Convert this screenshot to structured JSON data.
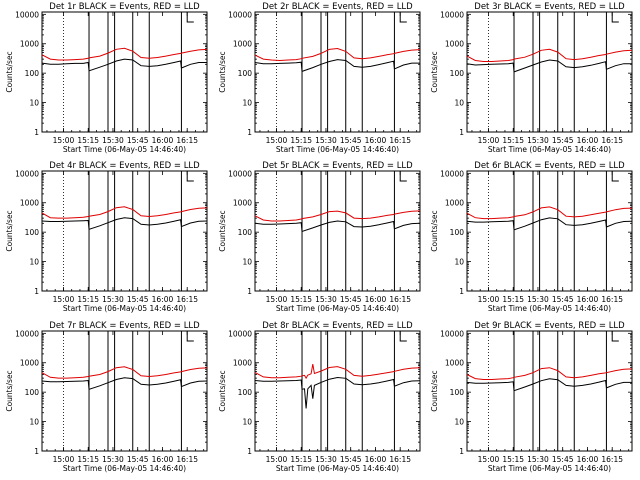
{
  "chart_data": [
    {
      "type": "line",
      "title": "Det 1r BLACK = Events, RED = LLD",
      "xlabel": "Start Time (06-May-05 14:46:40)",
      "ylabel": "Counts/sec",
      "xticks": [
        "15:00",
        "15:15",
        "15:30",
        "15:45",
        "16:00",
        "16:15"
      ],
      "yticks": [
        "1",
        "10",
        "100",
        "1000",
        "10000"
      ],
      "ylim": [
        1,
        12000
      ],
      "log_y": true,
      "x_minutes": [
        0,
        5,
        10,
        15,
        20,
        25,
        28,
        28.5,
        35,
        40,
        45,
        50,
        55,
        60,
        65,
        70,
        75,
        80,
        84,
        84.5,
        90,
        95,
        100
      ],
      "series": [
        {
          "name": "Events",
          "values": [
            220,
            200,
            200,
            210,
            215,
            215,
            230,
            120,
            160,
            200,
            260,
            300,
            280,
            180,
            170,
            180,
            200,
            230,
            260,
            150,
            200,
            230,
            230
          ]
        },
        {
          "name": "LLD",
          "values": [
            420,
            300,
            280,
            280,
            290,
            300,
            320,
            330,
            380,
            480,
            650,
            700,
            560,
            340,
            320,
            340,
            380,
            430,
            470,
            480,
            560,
            620,
            640
          ]
        }
      ]
    },
    {
      "type": "line",
      "title": "Det 2r BLACK = Events, RED = LLD",
      "xlabel": "Start Time (06-May-05 14:46:40)",
      "ylabel": "Counts/sec",
      "xticks": [
        "15:00",
        "15:15",
        "15:30",
        "15:45",
        "16:00",
        "16:15"
      ],
      "yticks": [
        "1",
        "10",
        "100",
        "1000",
        "10000"
      ],
      "ylim": [
        1,
        12000
      ],
      "log_y": true,
      "x_minutes": [
        0,
        5,
        10,
        15,
        20,
        25,
        28,
        28.5,
        35,
        40,
        45,
        50,
        55,
        60,
        65,
        70,
        75,
        80,
        84,
        84.5,
        90,
        95,
        100
      ],
      "series": [
        {
          "name": "Events",
          "values": [
            230,
            210,
            210,
            215,
            220,
            225,
            235,
            115,
            155,
            200,
            250,
            290,
            270,
            170,
            160,
            170,
            195,
            225,
            255,
            140,
            190,
            220,
            220
          ]
        },
        {
          "name": "LLD",
          "values": [
            410,
            300,
            280,
            270,
            280,
            290,
            310,
            320,
            370,
            470,
            640,
            690,
            550,
            330,
            310,
            330,
            370,
            420,
            460,
            470,
            550,
            610,
            630
          ]
        }
      ]
    },
    {
      "type": "line",
      "title": "Det 3r BLACK = Events, RED = LLD",
      "xlabel": "Start Time (06-May-05 14:46:40)",
      "ylabel": "Counts/sec",
      "xticks": [
        "15:00",
        "15:15",
        "15:30",
        "15:45",
        "16:00",
        "16:15"
      ],
      "yticks": [
        "1",
        "10",
        "100",
        "1000",
        "10000"
      ],
      "ylim": [
        1,
        12000
      ],
      "log_y": true,
      "x_minutes": [
        0,
        5,
        10,
        15,
        20,
        25,
        28,
        28.5,
        35,
        40,
        45,
        50,
        55,
        60,
        65,
        70,
        75,
        80,
        84,
        84.5,
        90,
        95,
        100
      ],
      "series": [
        {
          "name": "Events",
          "values": [
            210,
            190,
            195,
            200,
            205,
            210,
            220,
            110,
            150,
            190,
            240,
            280,
            260,
            165,
            155,
            165,
            185,
            215,
            245,
            135,
            180,
            210,
            210
          ]
        },
        {
          "name": "LLD",
          "values": [
            380,
            270,
            250,
            250,
            260,
            270,
            290,
            300,
            350,
            440,
            600,
            650,
            520,
            310,
            290,
            310,
            350,
            400,
            430,
            440,
            520,
            580,
            600
          ]
        }
      ]
    },
    {
      "type": "line",
      "title": "Det 4r BLACK = Events, RED = LLD",
      "xlabel": "Start Time (06-May-05 14:46:40)",
      "ylabel": "Counts/sec",
      "xticks": [
        "15:00",
        "15:15",
        "15:30",
        "15:45",
        "16:00",
        "16:15"
      ],
      "yticks": [
        "1",
        "10",
        "100",
        "1000",
        "10000"
      ],
      "ylim": [
        1,
        12000
      ],
      "log_y": true,
      "x_minutes": [
        0,
        5,
        10,
        15,
        20,
        25,
        28,
        28.5,
        35,
        40,
        45,
        50,
        55,
        60,
        65,
        70,
        75,
        80,
        84,
        84.5,
        90,
        95,
        100
      ],
      "series": [
        {
          "name": "Events",
          "values": [
            240,
            230,
            230,
            235,
            240,
            245,
            250,
            125,
            165,
            210,
            270,
            310,
            290,
            185,
            175,
            185,
            205,
            235,
            265,
            155,
            205,
            235,
            240
          ]
        },
        {
          "name": "LLD",
          "values": [
            450,
            310,
            300,
            300,
            310,
            320,
            340,
            350,
            400,
            500,
            680,
            730,
            590,
            360,
            340,
            360,
            400,
            450,
            490,
            500,
            590,
            650,
            670
          ]
        }
      ]
    },
    {
      "type": "line",
      "title": "Det 5r BLACK = Events, RED = LLD",
      "xlabel": "Start Time (06-May-05 14:46:40)",
      "ylabel": "Counts/sec",
      "xticks": [
        "15:00",
        "15:15",
        "15:30",
        "15:45",
        "16:00",
        "16:15"
      ],
      "yticks": [
        "1",
        "10",
        "100",
        "1000",
        "10000"
      ],
      "ylim": [
        1,
        12000
      ],
      "log_y": true,
      "x_minutes": [
        0,
        5,
        10,
        15,
        20,
        25,
        28,
        28.5,
        35,
        40,
        45,
        50,
        55,
        60,
        65,
        70,
        75,
        80,
        84,
        84.5,
        90,
        95,
        100
      ],
      "series": [
        {
          "name": "Events",
          "values": [
            200,
            185,
            185,
            190,
            195,
            200,
            210,
            105,
            140,
            175,
            215,
            240,
            225,
            155,
            150,
            160,
            180,
            205,
            230,
            130,
            170,
            195,
            200
          ]
        },
        {
          "name": "LLD",
          "values": [
            360,
            260,
            240,
            240,
            250,
            260,
            280,
            290,
            330,
            400,
            500,
            520,
            450,
            300,
            290,
            300,
            330,
            370,
            400,
            410,
            470,
            510,
            530
          ]
        }
      ]
    },
    {
      "type": "line",
      "title": "Det 6r BLACK = Events, RED = LLD",
      "xlabel": "Start Time (06-May-05 14:46:40)",
      "ylabel": "Counts/sec",
      "xticks": [
        "15:00",
        "15:15",
        "15:30",
        "15:45",
        "16:00",
        "16:15"
      ],
      "yticks": [
        "1",
        "10",
        "100",
        "1000",
        "10000"
      ],
      "ylim": [
        1,
        12000
      ],
      "log_y": true,
      "x_minutes": [
        0,
        5,
        10,
        15,
        20,
        25,
        28,
        28.5,
        35,
        40,
        45,
        50,
        55,
        60,
        65,
        70,
        75,
        80,
        84,
        84.5,
        90,
        95,
        100
      ],
      "series": [
        {
          "name": "Events",
          "values": [
            235,
            220,
            220,
            225,
            230,
            235,
            245,
            120,
            160,
            205,
            265,
            305,
            285,
            180,
            170,
            180,
            200,
            230,
            260,
            150,
            200,
            230,
            235
          ]
        },
        {
          "name": "LLD",
          "values": [
            440,
            310,
            290,
            290,
            300,
            310,
            330,
            340,
            390,
            490,
            670,
            720,
            580,
            350,
            330,
            350,
            390,
            440,
            480,
            490,
            580,
            640,
            660
          ]
        }
      ]
    },
    {
      "type": "line",
      "title": "Det 7r BLACK = Events, RED = LLD",
      "xlabel": "Start Time (06-May-05 14:46:40)",
      "ylabel": "Counts/sec",
      "xticks": [
        "15:00",
        "15:15",
        "15:30",
        "15:45",
        "16:00",
        "16:15"
      ],
      "yticks": [
        "1",
        "10",
        "100",
        "1000",
        "10000"
      ],
      "ylim": [
        1,
        12000
      ],
      "log_y": true,
      "x_minutes": [
        0,
        5,
        10,
        15,
        20,
        25,
        28,
        28.5,
        35,
        40,
        45,
        50,
        55,
        60,
        65,
        70,
        75,
        80,
        84,
        84.5,
        90,
        95,
        100
      ],
      "series": [
        {
          "name": "Events",
          "values": [
            240,
            225,
            225,
            230,
            235,
            240,
            250,
            125,
            165,
            210,
            270,
            310,
            290,
            185,
            175,
            185,
            205,
            235,
            265,
            155,
            205,
            235,
            240
          ]
        },
        {
          "name": "LLD",
          "values": [
            460,
            320,
            300,
            300,
            310,
            320,
            340,
            350,
            400,
            500,
            680,
            730,
            590,
            360,
            340,
            360,
            400,
            450,
            490,
            500,
            590,
            650,
            670
          ]
        }
      ]
    },
    {
      "type": "line",
      "title": "Det 8r BLACK = Events, RED = LLD",
      "xlabel": "Start Time (06-May-05 14:46:40)",
      "ylabel": "Counts/sec",
      "xticks": [
        "15:00",
        "15:15",
        "15:30",
        "15:45",
        "16:00",
        "16:15"
      ],
      "yticks": [
        "1",
        "10",
        "100",
        "1000",
        "10000"
      ],
      "ylim": [
        1,
        12000
      ],
      "log_y": true,
      "x_minutes": [
        0,
        5,
        10,
        15,
        20,
        25,
        28,
        28.5,
        30,
        31,
        32,
        34,
        35,
        36,
        40,
        45,
        50,
        55,
        60,
        65,
        70,
        75,
        80,
        84,
        84.5,
        90,
        95,
        100
      ],
      "series": [
        {
          "name": "Events",
          "values": [
            250,
            235,
            235,
            240,
            245,
            250,
            260,
            125,
            130,
            28,
            130,
            170,
            60,
            170,
            215,
            275,
            315,
            295,
            190,
            180,
            190,
            210,
            240,
            270,
            160,
            210,
            240,
            245
          ]
        },
        {
          "name": "LLD",
          "values": [
            470,
            330,
            310,
            310,
            320,
            330,
            350,
            360,
            370,
            300,
            380,
            420,
            900,
            430,
            520,
            690,
            740,
            600,
            370,
            350,
            370,
            410,
            460,
            500,
            510,
            600,
            660,
            680
          ]
        }
      ]
    },
    {
      "type": "line",
      "title": "Det 9r BLACK = Events, RED = LLD",
      "xlabel": "Start Time (06-May-05 14:46:40)",
      "ylabel": "Counts/sec",
      "xticks": [
        "15:00",
        "15:15",
        "15:30",
        "15:45",
        "16:00",
        "16:15"
      ],
      "yticks": [
        "1",
        "10",
        "100",
        "1000",
        "10000"
      ],
      "ylim": [
        1,
        12000
      ],
      "log_y": true,
      "x_minutes": [
        0,
        5,
        10,
        15,
        20,
        25,
        28,
        28.5,
        35,
        40,
        45,
        50,
        55,
        60,
        65,
        70,
        75,
        80,
        84,
        84.5,
        90,
        95,
        100
      ],
      "series": [
        {
          "name": "Events",
          "values": [
            215,
            200,
            200,
            205,
            210,
            215,
            225,
            112,
            150,
            190,
            245,
            285,
            265,
            170,
            160,
            170,
            190,
            220,
            250,
            140,
            185,
            215,
            215
          ]
        },
        {
          "name": "LLD",
          "values": [
            400,
            290,
            270,
            270,
            280,
            290,
            310,
            320,
            370,
            460,
            630,
            680,
            540,
            330,
            310,
            330,
            370,
            420,
            450,
            460,
            540,
            600,
            620
          ]
        }
      ]
    }
  ]
}
